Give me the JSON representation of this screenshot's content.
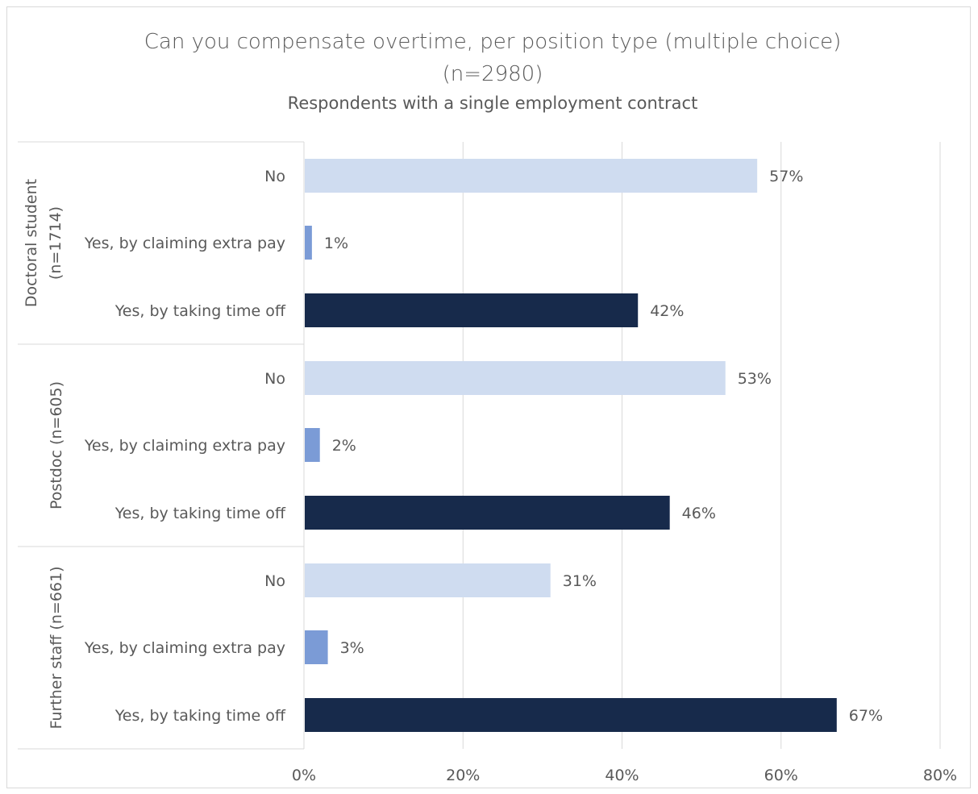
{
  "chart_data": {
    "type": "bar",
    "orientation": "horizontal",
    "title": "Can you compensate overtime, per position type (multiple choice)",
    "title_line2": "(n=2980)",
    "subtitle": "Respondents with a single employment contract",
    "xlim": [
      0,
      80
    ],
    "x_ticks": [
      "0%",
      "20%",
      "40%",
      "60%",
      "80%"
    ],
    "grid": true,
    "legend": "none",
    "colors": {
      "No": "#cfdcf0",
      "Yes, by claiming extra pay": "#7b9bd6",
      "Yes, by taking time off": "#172a4b"
    },
    "groups": [
      {
        "name": "Doctoral student (n=1714)",
        "name_lines": [
          "Doctoral student",
          "(n=1714)"
        ],
        "bars": [
          {
            "label": "No",
            "value": 57,
            "value_label": "57%"
          },
          {
            "label": "Yes, by claiming extra pay",
            "value": 1,
            "value_label": "1%"
          },
          {
            "label": "Yes, by taking time off",
            "value": 42,
            "value_label": "42%"
          }
        ]
      },
      {
        "name": "Postdoc (n=605)",
        "name_lines": [
          "Postdoc (n=605)"
        ],
        "bars": [
          {
            "label": "No",
            "value": 53,
            "value_label": "53%"
          },
          {
            "label": "Yes, by claiming extra pay",
            "value": 2,
            "value_label": "2%"
          },
          {
            "label": "Yes, by taking time off",
            "value": 46,
            "value_label": "46%"
          }
        ]
      },
      {
        "name": "Further staff (n=661)",
        "name_lines": [
          "Further staff (n=661)"
        ],
        "bars": [
          {
            "label": "No",
            "value": 31,
            "value_label": "31%"
          },
          {
            "label": "Yes, by claiming extra pay",
            "value": 3,
            "value_label": "3%"
          },
          {
            "label": "Yes, by taking time off",
            "value": 67,
            "value_label": "67%"
          }
        ]
      }
    ]
  }
}
